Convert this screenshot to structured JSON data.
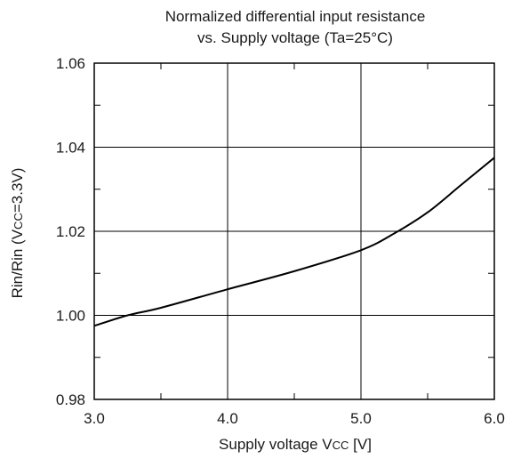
{
  "chart_data": {
    "type": "line",
    "title": [
      "Normalized differential input resistance",
      "vs. Supply voltage (Ta=25°C)"
    ],
    "xlabel": {
      "prefix": "Supply voltage V",
      "subscript": "CC",
      "suffix": " [V]"
    },
    "ylabel": {
      "prefix": "Rin/Rin (V",
      "subscript": "CC",
      "suffix": "=3.3V)"
    },
    "xlim": [
      3.0,
      6.0
    ],
    "ylim": [
      0.98,
      1.06
    ],
    "x_ticks": [
      3.0,
      4.0,
      5.0,
      6.0
    ],
    "x_tick_labels": [
      "3.0",
      "4.0",
      "5.0",
      "6.0"
    ],
    "x_minor_ticks": [
      3.5,
      4.5,
      5.5
    ],
    "y_ticks": [
      0.98,
      1.0,
      1.02,
      1.04,
      1.06
    ],
    "y_tick_labels": [
      "0.98",
      "1.00",
      "1.02",
      "1.04",
      "1.06"
    ],
    "y_minor_ticks": [
      0.99,
      1.01,
      1.03,
      1.05
    ],
    "grid": true,
    "series": [
      {
        "x": [
          3.0,
          3.25,
          3.5,
          4.0,
          4.5,
          5.0,
          5.25,
          5.5,
          5.75,
          6.0
        ],
        "y": [
          0.9975,
          1.0,
          1.0018,
          1.0062,
          1.0105,
          1.0155,
          1.0195,
          1.0245,
          1.031,
          1.0375
        ]
      }
    ]
  }
}
